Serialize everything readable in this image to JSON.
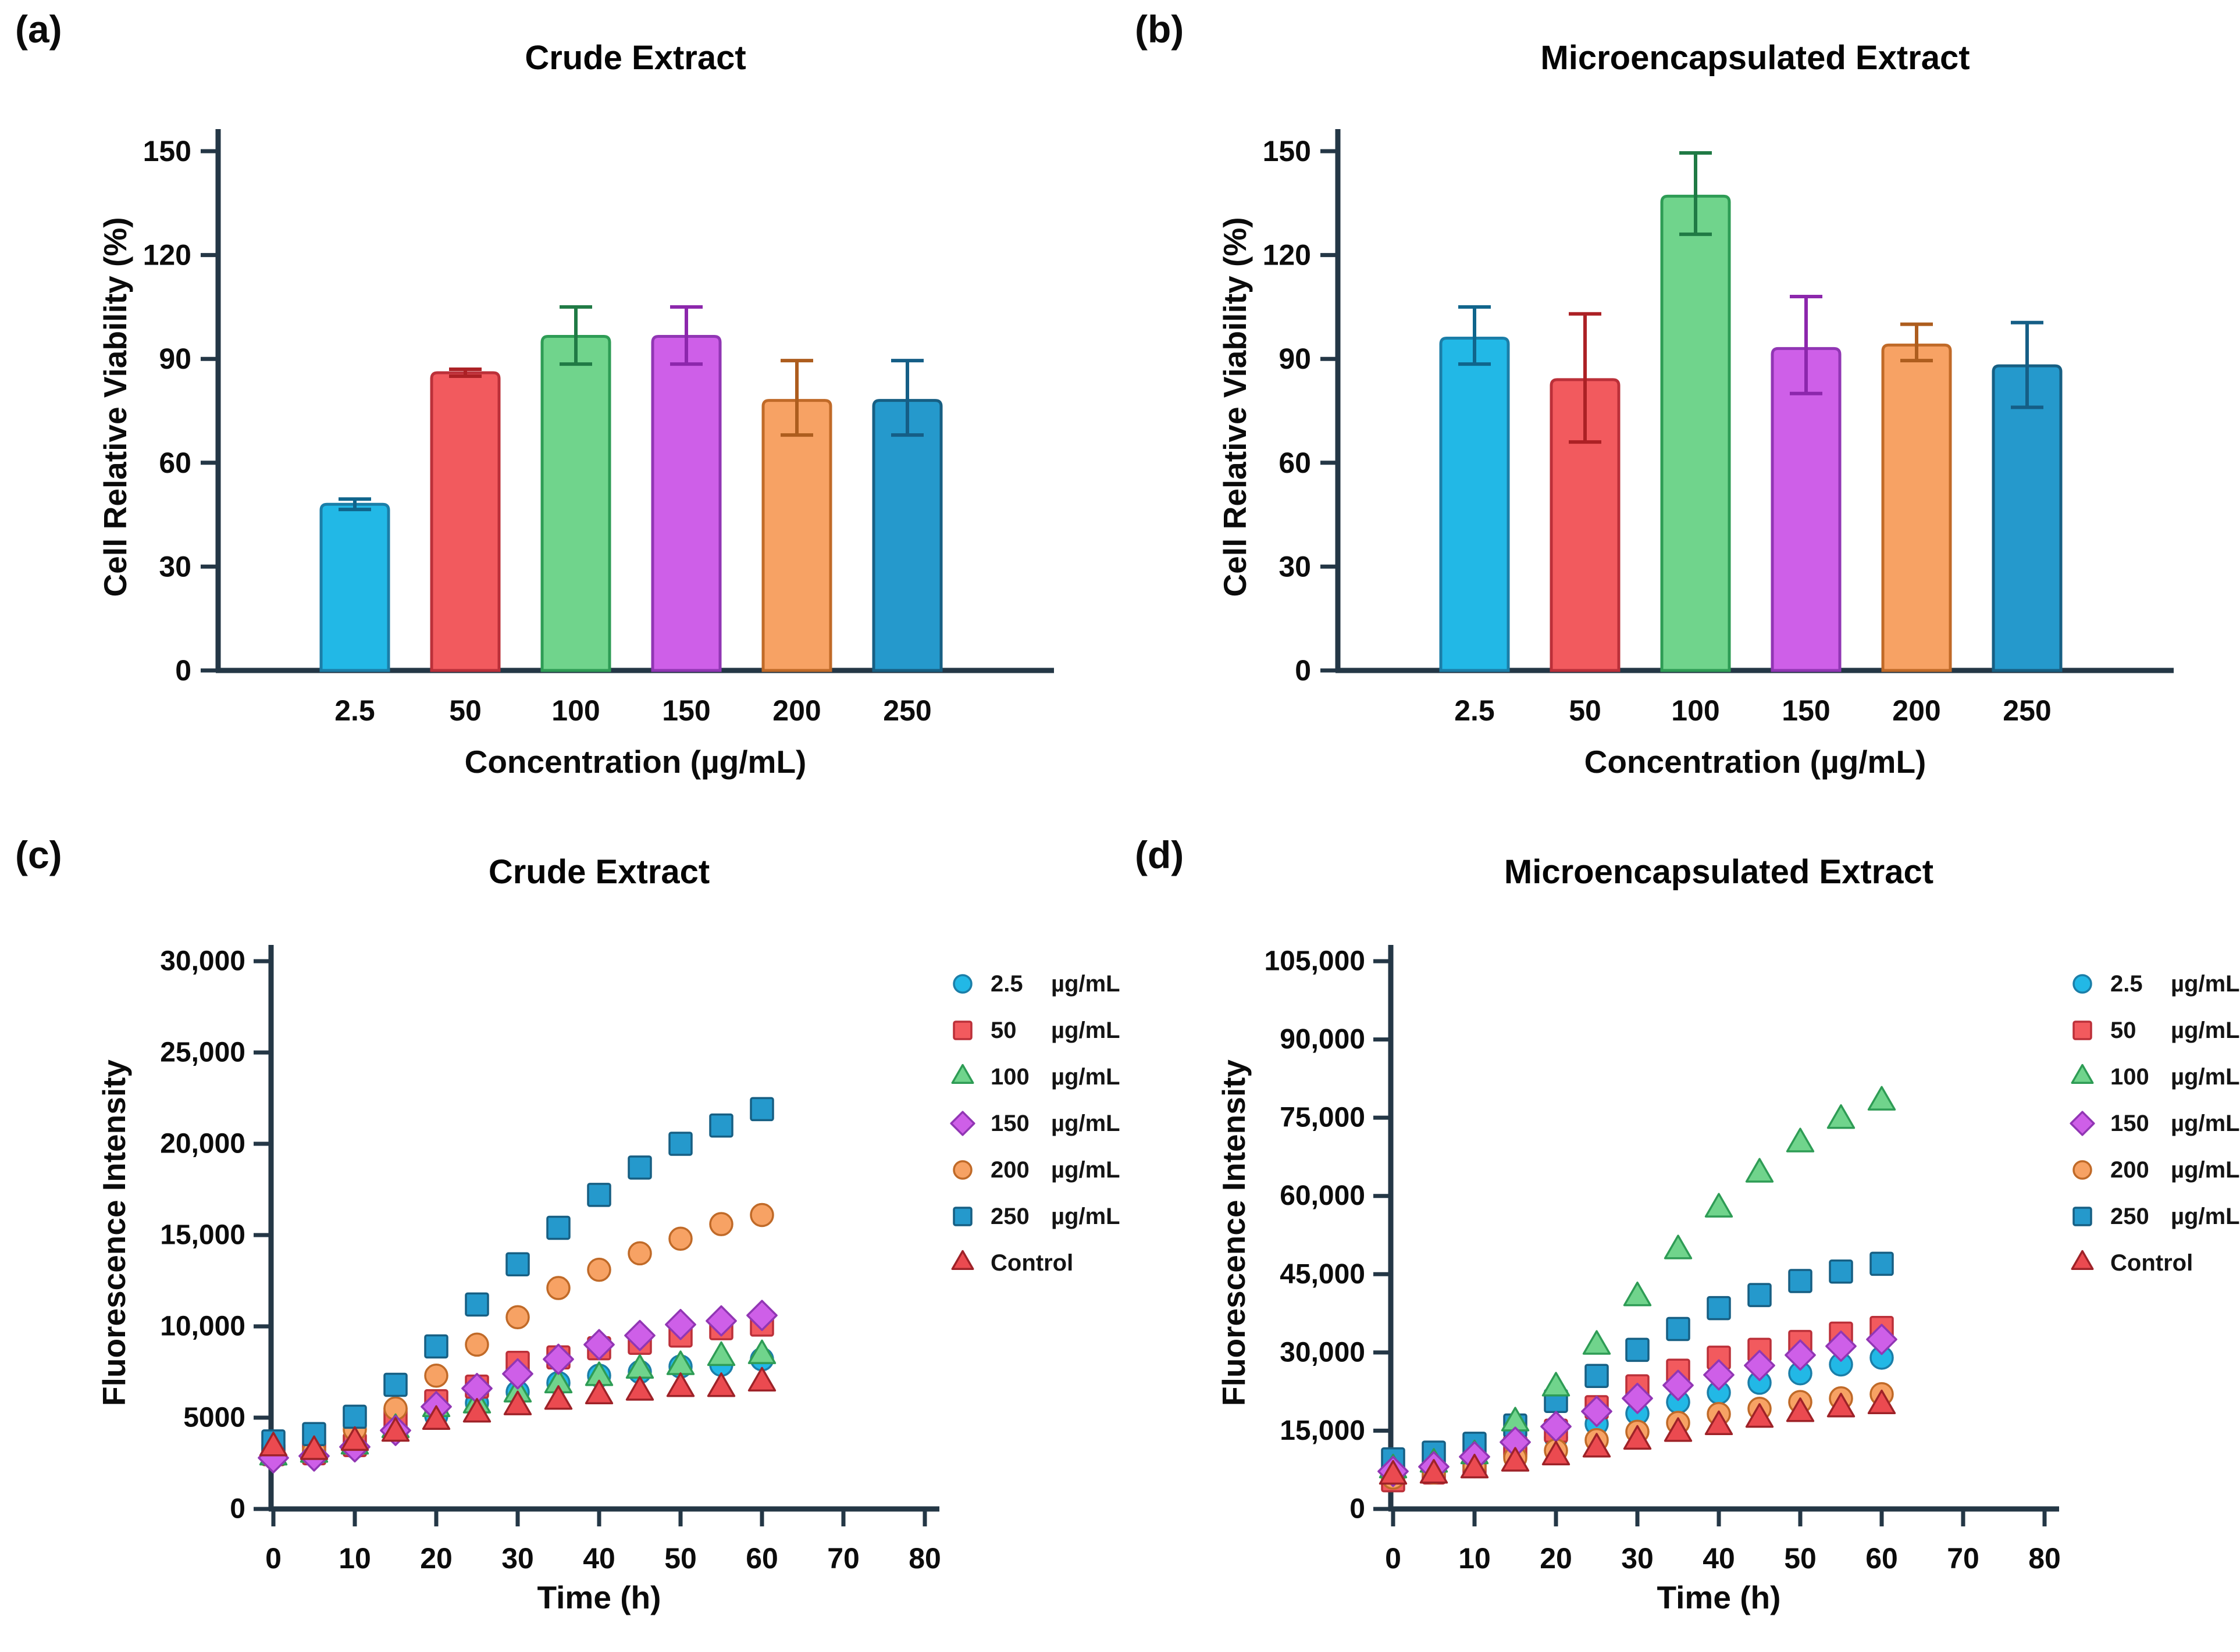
{
  "figure": {
    "background": "#ffffff",
    "description": "Four-panel figure: cell viability bar charts (a,b) and fluorescence intensity time-course scatter plots (c,d) for Crude vs Microencapsulated Extract"
  },
  "palette": {
    "axis": "#243746",
    "cyan": {
      "fill": "#22B8E6",
      "edge": "#1B7EA8",
      "err": "#10658C"
    },
    "red": {
      "fill": "#F25A5E",
      "edge": "#BB3039",
      "err": "#AC2125"
    },
    "green": {
      "fill": "#70D48C",
      "edge": "#2E9C55",
      "err": "#207A45"
    },
    "purple": {
      "fill": "#CE5FE8",
      "edge": "#9136B4",
      "err": "#8C27AC"
    },
    "orange": {
      "fill": "#F7A264",
      "edge": "#C06A28",
      "err": "#AD5D1E"
    },
    "blue": {
      "fill": "#2599CC",
      "edge": "#175F83",
      "err": "#155E86"
    },
    "control": {
      "fill": "#EB4A50",
      "edge": "#9E2228",
      "err": "#9E2228"
    }
  },
  "chart_data": [
    {
      "panel_label": "(a)",
      "type": "bar",
      "title": "Crude Extract",
      "xlabel": "Concentration (µg/mL)",
      "ylabel": "Cell Relative Viability (%)",
      "ylim": [
        0,
        150
      ],
      "yticks": [
        0,
        30,
        60,
        90,
        120,
        150
      ],
      "ytick_labels": [
        "0",
        "30",
        "60",
        "90",
        "120",
        "150"
      ],
      "categories": [
        "2.5",
        "50",
        "100",
        "150",
        "200",
        "250"
      ],
      "values": [
        48,
        86,
        96.5,
        96.5,
        78,
        78
      ],
      "errors_plus": [
        1.5,
        1,
        8.5,
        8.5,
        11.5,
        11.5
      ],
      "errors_minus": [
        1.5,
        1,
        8,
        8,
        10,
        10
      ],
      "bar_colors": [
        "cyan",
        "red",
        "green",
        "purple",
        "orange",
        "blue"
      ],
      "grid": false
    },
    {
      "panel_label": "(b)",
      "type": "bar",
      "title": "Microencapsulated Extract",
      "xlabel": "Concentration (µg/mL)",
      "ylabel": "Cell Relative Viability (%)",
      "ylim": [
        0,
        150
      ],
      "yticks": [
        0,
        30,
        60,
        90,
        120,
        150
      ],
      "ytick_labels": [
        "0",
        "30",
        "60",
        "90",
        "120",
        "150"
      ],
      "categories": [
        "2.5",
        "50",
        "100",
        "150",
        "200",
        "250"
      ],
      "values": [
        96,
        84,
        137,
        93,
        94,
        88
      ],
      "errors_plus": [
        9,
        19,
        12.5,
        15,
        6,
        12.5
      ],
      "errors_minus": [
        7.5,
        18,
        11,
        13,
        4.5,
        12
      ],
      "bar_colors": [
        "cyan",
        "red",
        "green",
        "purple",
        "orange",
        "blue"
      ],
      "grid": false
    },
    {
      "panel_label": "(c)",
      "type": "scatter",
      "title": "Crude Extract",
      "xlabel": "Time (h)",
      "ylabel": "Fluorescence Intensity",
      "xlim": [
        0,
        80
      ],
      "xticks": [
        0,
        10,
        20,
        30,
        40,
        50,
        60,
        70,
        80
      ],
      "xtick_labels": [
        "0",
        "10",
        "20",
        "30",
        "40",
        "50",
        "60",
        "70",
        "80"
      ],
      "ylim": [
        0,
        30000
      ],
      "yticks": [
        0,
        5000,
        10000,
        15000,
        20000,
        25000,
        30000
      ],
      "ytick_labels": [
        "0",
        "5000",
        "10,000",
        "15,000",
        "20,000",
        "25,000",
        "30,000"
      ],
      "x": [
        0,
        5,
        10,
        15,
        20,
        25,
        30,
        35,
        40,
        45,
        50,
        55,
        60
      ],
      "legend_position": "right",
      "grid": false,
      "series": [
        {
          "name": "2.5",
          "unit": "µg/mL",
          "marker": "circle",
          "color": "cyan",
          "values": [
            2900,
            3000,
            3400,
            4300,
            5100,
            5800,
            6400,
            6900,
            7300,
            7500,
            7800,
            7900,
            8200
          ]
        },
        {
          "name": "50",
          "unit": "µg/mL",
          "marker": "square",
          "color": "red",
          "values": [
            3000,
            3050,
            3500,
            5000,
            5900,
            6700,
            8000,
            8300,
            8800,
            9100,
            9500,
            9900,
            10100
          ]
        },
        {
          "name": "100",
          "unit": "µg/mL",
          "marker": "triangle",
          "color": "green",
          "values": [
            2850,
            3000,
            3450,
            4350,
            5500,
            5700,
            6300,
            6800,
            7200,
            7600,
            7800,
            8300,
            8400
          ]
        },
        {
          "name": "150",
          "unit": "µg/mL",
          "marker": "diamond",
          "color": "purple",
          "values": [
            2800,
            2900,
            3400,
            4300,
            5600,
            6600,
            7400,
            8200,
            9000,
            9500,
            10100,
            10300,
            10600
          ]
        },
        {
          "name": "200",
          "unit": "µg/mL",
          "marker": "circle",
          "color": "orange",
          "values": [
            3100,
            3200,
            4350,
            5500,
            7300,
            9000,
            10500,
            12100,
            13100,
            14000,
            14800,
            15600,
            16100
          ]
        },
        {
          "name": "250",
          "unit": "µg/mL",
          "marker": "square",
          "color": "blue",
          "values": [
            3700,
            4100,
            5050,
            6800,
            8900,
            11200,
            13400,
            15400,
            17200,
            18700,
            20000,
            21000,
            21900
          ]
        },
        {
          "name": "Control",
          "unit": "",
          "marker": "triangle",
          "color": "control",
          "values": [
            3350,
            3150,
            3650,
            4150,
            4800,
            5200,
            5600,
            5900,
            6200,
            6400,
            6600,
            6600,
            6900
          ]
        }
      ]
    },
    {
      "panel_label": "(d)",
      "type": "scatter",
      "title": "Microencapsulated Extract",
      "xlabel": "Time (h)",
      "ylabel": "Fluorescence Intensity",
      "xlim": [
        0,
        80
      ],
      "xticks": [
        0,
        10,
        20,
        30,
        40,
        50,
        60,
        70,
        80
      ],
      "xtick_labels": [
        "0",
        "10",
        "20",
        "30",
        "40",
        "50",
        "60",
        "70",
        "80"
      ],
      "ylim": [
        0,
        105000
      ],
      "yticks": [
        0,
        15000,
        30000,
        45000,
        60000,
        75000,
        90000,
        105000
      ],
      "ytick_labels": [
        "0",
        "15,000",
        "30,000",
        "45,000",
        "60,000",
        "75,000",
        "90,000",
        "105,000"
      ],
      "x": [
        0,
        5,
        10,
        15,
        20,
        25,
        30,
        35,
        40,
        45,
        50,
        55,
        60
      ],
      "legend_position": "right",
      "grid": false,
      "series": [
        {
          "name": "2.5",
          "unit": "µg/mL",
          "marker": "circle",
          "color": "cyan",
          "values": [
            8000,
            8600,
            9800,
            11500,
            13700,
            16300,
            18300,
            20500,
            22300,
            24200,
            26000,
            27700,
            29000
          ]
        },
        {
          "name": "50",
          "unit": "µg/mL",
          "marker": "square",
          "color": "red",
          "values": [
            5500,
            7000,
            8700,
            11800,
            15000,
            19500,
            23500,
            26500,
            29000,
            30500,
            32000,
            33600,
            34700
          ]
        },
        {
          "name": "100",
          "unit": "µg/mL",
          "marker": "triangle",
          "color": "green",
          "values": [
            7500,
            8600,
            10200,
            16500,
            23200,
            31200,
            40500,
            49500,
            57500,
            64200,
            70000,
            74500,
            78000
          ]
        },
        {
          "name": "150",
          "unit": "µg/mL",
          "marker": "diamond",
          "color": "purple",
          "values": [
            7200,
            8100,
            10000,
            12800,
            15800,
            18700,
            21200,
            23700,
            25700,
            27500,
            29500,
            31200,
            32500
          ]
        },
        {
          "name": "200",
          "unit": "µg/mL",
          "marker": "circle",
          "color": "orange",
          "values": [
            6000,
            7000,
            8200,
            9800,
            11200,
            13200,
            14800,
            16500,
            18200,
            19200,
            20500,
            21200,
            22000
          ]
        },
        {
          "name": "250",
          "unit": "µg/mL",
          "marker": "square",
          "color": "blue",
          "values": [
            9500,
            10800,
            12500,
            16000,
            20700,
            25500,
            30500,
            34500,
            38500,
            41000,
            43700,
            45500,
            47000
          ]
        },
        {
          "name": "Control",
          "unit": "",
          "marker": "triangle",
          "color": "control",
          "values": [
            6300,
            6500,
            7500,
            8800,
            10000,
            11500,
            13000,
            14500,
            15800,
            17200,
            18300,
            19200,
            19800
          ]
        }
      ]
    }
  ]
}
